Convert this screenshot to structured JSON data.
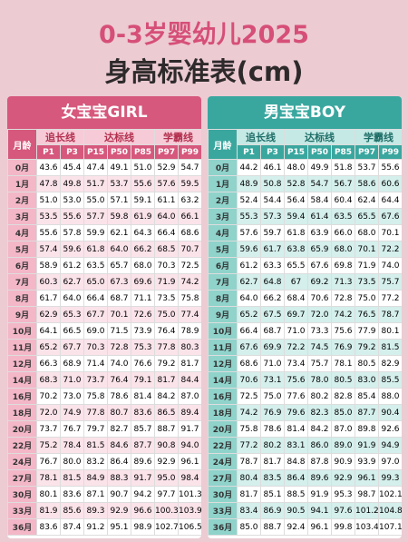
{
  "header": {
    "line1": "0-3岁婴幼儿2025",
    "line2": "身高标准表(cm)"
  },
  "tables": [
    {
      "title": "女宝宝GIRL",
      "month_label": "月龄",
      "groups": [
        "追长线",
        "达标线",
        "学霸线"
      ],
      "columns": [
        "P1",
        "P3",
        "P15",
        "P50",
        "P85",
        "P97",
        "P99"
      ],
      "rows": [
        [
          "0月",
          "43.6",
          "45.4",
          "47.4",
          "49.1",
          "51.0",
          "52.9",
          "54.7"
        ],
        [
          "1月",
          "47.8",
          "49.8",
          "51.7",
          "53.7",
          "55.6",
          "57.6",
          "59.5"
        ],
        [
          "2月",
          "51.0",
          "53.0",
          "55.0",
          "57.1",
          "59.1",
          "61.1",
          "63.2"
        ],
        [
          "3月",
          "53.5",
          "55.6",
          "57.7",
          "59.8",
          "61.9",
          "64.0",
          "66.1"
        ],
        [
          "4月",
          "55.6",
          "57.8",
          "59.9",
          "62.1",
          "64.3",
          "66.4",
          "68.6"
        ],
        [
          "5月",
          "57.4",
          "59.6",
          "61.8",
          "64.0",
          "66.2",
          "68.5",
          "70.7"
        ],
        [
          "6月",
          "58.9",
          "61.2",
          "63.5",
          "65.7",
          "68.0",
          "70.3",
          "72.5"
        ],
        [
          "7月",
          "60.3",
          "62.7",
          "65.0",
          "67.3",
          "69.6",
          "71.9",
          "74.2"
        ],
        [
          "8月",
          "61.7",
          "64.0",
          "66.4",
          "68.7",
          "71.1",
          "73.5",
          "75.8"
        ],
        [
          "9月",
          "62.9",
          "65.3",
          "67.7",
          "70.1",
          "72.6",
          "75.0",
          "77.4"
        ],
        [
          "10月",
          "64.1",
          "66.5",
          "69.0",
          "71.5",
          "73.9",
          "76.4",
          "78.9"
        ],
        [
          "11月",
          "65.2",
          "67.7",
          "70.3",
          "72.8",
          "75.3",
          "77.8",
          "80.3"
        ],
        [
          "12月",
          "66.3",
          "68.9",
          "71.4",
          "74.0",
          "76.6",
          "79.2",
          "81.7"
        ],
        [
          "14月",
          "68.3",
          "71.0",
          "73.7",
          "76.4",
          "79.1",
          "81.7",
          "84.4"
        ],
        [
          "16月",
          "70.2",
          "73.0",
          "75.8",
          "78.6",
          "81.4",
          "84.2",
          "87.0"
        ],
        [
          "18月",
          "72.0",
          "74.9",
          "77.8",
          "80.7",
          "83.6",
          "86.5",
          "89.4"
        ],
        [
          "20月",
          "73.7",
          "76.7",
          "79.7",
          "82.7",
          "85.7",
          "88.7",
          "91.7"
        ],
        [
          "22月",
          "75.2",
          "78.4",
          "81.5",
          "84.6",
          "87.7",
          "90.8",
          "94.0"
        ],
        [
          "24月",
          "76.7",
          "80.0",
          "83.2",
          "86.4",
          "89.6",
          "92.9",
          "96.1"
        ],
        [
          "27月",
          "78.1",
          "81.5",
          "84.9",
          "88.3",
          "91.7",
          "95.0",
          "98.4"
        ],
        [
          "30月",
          "80.1",
          "83.6",
          "87.1",
          "90.7",
          "94.2",
          "97.7",
          "101.3"
        ],
        [
          "33月",
          "81.9",
          "85.6",
          "89.3",
          "92.9",
          "96.6",
          "100.3",
          "103.9"
        ],
        [
          "36月",
          "83.6",
          "87.4",
          "91.2",
          "95.1",
          "98.9",
          "102.7",
          "106.5"
        ]
      ]
    },
    {
      "title": "男宝宝BOY",
      "month_label": "月龄",
      "groups": [
        "追长线",
        "达标线",
        "学霸线"
      ],
      "columns": [
        "P1",
        "P3",
        "P15",
        "P50",
        "P85",
        "P97",
        "P99"
      ],
      "rows": [
        [
          "0月",
          "44.2",
          "46.1",
          "48.0",
          "49.9",
          "51.8",
          "53.7",
          "55.6"
        ],
        [
          "1月",
          "48.9",
          "50.8",
          "52.8",
          "54.7",
          "56.7",
          "58.6",
          "60.6"
        ],
        [
          "2月",
          "52.4",
          "54.4",
          "56.4",
          "58.4",
          "60.4",
          "62.4",
          "64.4"
        ],
        [
          "3月",
          "55.3",
          "57.3",
          "59.4",
          "61.4",
          "63.5",
          "65.5",
          "67.6"
        ],
        [
          "4月",
          "57.6",
          "59.7",
          "61.8",
          "63.9",
          "66.0",
          "68.0",
          "70.1"
        ],
        [
          "5月",
          "59.6",
          "61.7",
          "63.8",
          "65.9",
          "68.0",
          "70.1",
          "72.2"
        ],
        [
          "6月",
          "61.2",
          "63.3",
          "65.5",
          "67.6",
          "69.8",
          "71.9",
          "74.0"
        ],
        [
          "7月",
          "62.7",
          "64.8",
          "67",
          "69.2",
          "71.3",
          "73.5",
          "75.7"
        ],
        [
          "8月",
          "64.0",
          "66.2",
          "68.4",
          "70.6",
          "72.8",
          "75.0",
          "77.2"
        ],
        [
          "9月",
          "65.2",
          "67.5",
          "69.7",
          "72.0",
          "74.2",
          "76.5",
          "78.7"
        ],
        [
          "10月",
          "66.4",
          "68.7",
          "71.0",
          "73.3",
          "75.6",
          "77.9",
          "80.1"
        ],
        [
          "11月",
          "67.6",
          "69.9",
          "72.2",
          "74.5",
          "76.9",
          "79.2",
          "81.5"
        ],
        [
          "12月",
          "68.6",
          "71.0",
          "73.4",
          "75.7",
          "78.1",
          "80.5",
          "82.9"
        ],
        [
          "14月",
          "70.6",
          "73.1",
          "75.6",
          "78.0",
          "80.5",
          "83.0",
          "85.5"
        ],
        [
          "16月",
          "72.5",
          "75.0",
          "77.6",
          "80.2",
          "82.8",
          "85.4",
          "88.0"
        ],
        [
          "18月",
          "74.2",
          "76.9",
          "79.6",
          "82.3",
          "85.0",
          "87.7",
          "90.4"
        ],
        [
          "20月",
          "75.8",
          "78.6",
          "81.4",
          "84.2",
          "87.0",
          "89.8",
          "92.6"
        ],
        [
          "22月",
          "77.2",
          "80.2",
          "83.1",
          "86.0",
          "89.0",
          "91.9",
          "94.9"
        ],
        [
          "24月",
          "78.7",
          "81.7",
          "84.8",
          "87.8",
          "90.9",
          "93.9",
          "97.0"
        ],
        [
          "27月",
          "80.4",
          "83.5",
          "86.4",
          "89.6",
          "92.9",
          "96.1",
          "99.3"
        ],
        [
          "30月",
          "81.7",
          "85.1",
          "88.5",
          "91.9",
          "95.3",
          "98.7",
          "102.1"
        ],
        [
          "33月",
          "83.4",
          "86.9",
          "90.5",
          "94.1",
          "97.6",
          "101.2",
          "104.8"
        ],
        [
          "36月",
          "85.0",
          "88.7",
          "92.4",
          "96.1",
          "99.8",
          "103.4",
          "107.1"
        ]
      ]
    }
  ]
}
